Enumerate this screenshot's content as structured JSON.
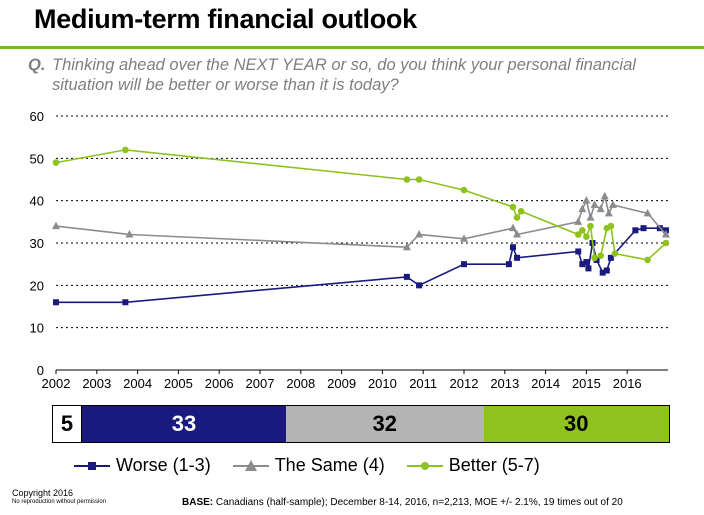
{
  "title": "Medium-term financial outlook",
  "question": {
    "prefix": "Q.",
    "text": "Thinking ahead over the NEXT YEAR or so, do you think your personal financial situation will be better or worse than it is today?"
  },
  "chart_data": {
    "type": "line",
    "xlabel": "",
    "ylabel": "",
    "ylim": [
      0,
      60
    ],
    "xlim": [
      2002,
      2017
    ],
    "yticks": [
      0,
      10,
      20,
      30,
      40,
      50,
      60
    ],
    "xticks": [
      "2002",
      "2003",
      "2004",
      "2005",
      "2006",
      "2007",
      "2008",
      "2009",
      "2010",
      "2011",
      "2012",
      "2013",
      "2014",
      "2015",
      "2016"
    ],
    "grid": "horizontal dotted",
    "legend_position": "bottom",
    "series": [
      {
        "name": "Worse (1-3)",
        "color": "#1a1a7e",
        "marker": "square",
        "points": [
          [
            2002.0,
            16
          ],
          [
            2003.7,
            16
          ],
          [
            2010.6,
            22
          ],
          [
            2010.9,
            20
          ],
          [
            2012.0,
            25
          ],
          [
            2013.1,
            25
          ],
          [
            2013.2,
            29
          ],
          [
            2013.3,
            26.5
          ],
          [
            2014.8,
            28
          ],
          [
            2014.9,
            25
          ],
          [
            2015.0,
            25.5
          ],
          [
            2015.05,
            24
          ],
          [
            2015.15,
            30
          ],
          [
            2015.25,
            26
          ],
          [
            2015.4,
            23
          ],
          [
            2015.5,
            23.5
          ],
          [
            2015.6,
            26.5
          ],
          [
            2016.2,
            33
          ],
          [
            2016.4,
            33.5
          ],
          [
            2016.8,
            33.5
          ],
          [
            2016.95,
            33
          ]
        ]
      },
      {
        "name": "The Same (4)",
        "color": "#8c8c8c",
        "marker": "triangle",
        "points": [
          [
            2002.0,
            34
          ],
          [
            2003.8,
            32
          ],
          [
            2010.6,
            29
          ],
          [
            2010.9,
            32
          ],
          [
            2012.0,
            31
          ],
          [
            2013.2,
            33.5
          ],
          [
            2013.3,
            32
          ],
          [
            2014.8,
            35
          ],
          [
            2014.9,
            38
          ],
          [
            2015.0,
            40
          ],
          [
            2015.1,
            36
          ],
          [
            2015.2,
            39
          ],
          [
            2015.35,
            38
          ],
          [
            2015.45,
            41
          ],
          [
            2015.55,
            37
          ],
          [
            2015.65,
            39
          ],
          [
            2016.5,
            37
          ],
          [
            2016.95,
            32
          ]
        ]
      },
      {
        "name": "Better (5-7)",
        "color": "#8dc21f",
        "marker": "circle",
        "points": [
          [
            2002.0,
            49
          ],
          [
            2003.7,
            52
          ],
          [
            2010.6,
            45
          ],
          [
            2010.9,
            45
          ],
          [
            2012.0,
            42.5
          ],
          [
            2013.2,
            38.5
          ],
          [
            2013.3,
            36
          ],
          [
            2013.4,
            37.5
          ],
          [
            2014.8,
            32
          ],
          [
            2014.9,
            33
          ],
          [
            2015.0,
            31.5
          ],
          [
            2015.1,
            34
          ],
          [
            2015.2,
            26.5
          ],
          [
            2015.35,
            27
          ],
          [
            2015.5,
            33.5
          ],
          [
            2015.6,
            34
          ],
          [
            2015.7,
            27.5
          ],
          [
            2016.5,
            26
          ],
          [
            2016.95,
            30
          ]
        ]
      }
    ]
  },
  "stacked_bar": {
    "dont_know": "5",
    "worse": "33",
    "same": "32",
    "better": "30"
  },
  "legend": {
    "worse": "Worse (1-3)",
    "same": "The Same (4)",
    "better": "Better (5-7)"
  },
  "footer": {
    "copyright": "Copyright 2016",
    "copyright_sub": "No reproduction without permission",
    "base_label": "BASE:",
    "base_text": "Canadians (half-sample); December 8-14, 2016, n=2,213, MOE +/- 2.1%, 19 times out of 20"
  }
}
